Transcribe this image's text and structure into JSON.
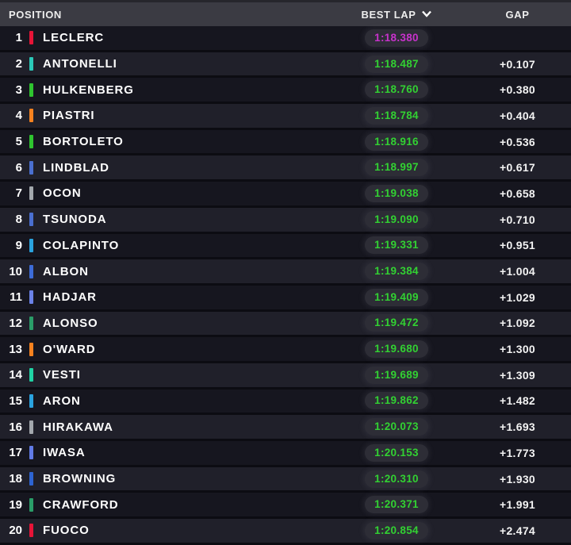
{
  "header": {
    "position_label": "POSITION",
    "best_lap_label": "BEST LAP",
    "gap_label": "GAP",
    "sort_icon": "chevron-down-icon"
  },
  "colors": {
    "header_bg": "#3b3b43",
    "row_odd_bg": "#16161f",
    "row_even_bg": "#20202a",
    "fastest_lap_text": "#c832cc",
    "personal_best_text": "#32d132",
    "gap_text": "#f3f3f3",
    "pill_bg": "#2d2d36"
  },
  "rows": [
    {
      "position": "1",
      "driver": "LECLERC",
      "team": "ferrari",
      "team_color": "#e61437",
      "best_lap": "1:18.380",
      "lap_state": "purple",
      "gap": ""
    },
    {
      "position": "2",
      "driver": "ANTONELLI",
      "team": "mercedes",
      "team_color": "#2bc9b9",
      "best_lap": "1:18.487",
      "lap_state": "green",
      "gap": "+0.107"
    },
    {
      "position": "3",
      "driver": "HULKENBERG",
      "team": "sauber",
      "team_color": "#2fc42f",
      "best_lap": "1:18.760",
      "lap_state": "green",
      "gap": "+0.380"
    },
    {
      "position": "4",
      "driver": "PIASTRI",
      "team": "mclaren",
      "team_color": "#f6821f",
      "best_lap": "1:18.784",
      "lap_state": "green",
      "gap": "+0.404"
    },
    {
      "position": "5",
      "driver": "BORTOLETO",
      "team": "sauber",
      "team_color": "#2fc42f",
      "best_lap": "1:18.916",
      "lap_state": "green",
      "gap": "+0.536"
    },
    {
      "position": "6",
      "driver": "LINDBLAD",
      "team": "red-bull",
      "team_color": "#4a6fd0",
      "best_lap": "1:18.997",
      "lap_state": "green",
      "gap": "+0.617"
    },
    {
      "position": "7",
      "driver": "OCON",
      "team": "haas",
      "team_color": "#a3a8ad",
      "best_lap": "1:19.038",
      "lap_state": "green",
      "gap": "+0.658"
    },
    {
      "position": "8",
      "driver": "TSUNODA",
      "team": "red-bull",
      "team_color": "#4a6fd0",
      "best_lap": "1:19.090",
      "lap_state": "green",
      "gap": "+0.710"
    },
    {
      "position": "9",
      "driver": "COLAPINTO",
      "team": "alpine",
      "team_color": "#2aa3df",
      "best_lap": "1:19.331",
      "lap_state": "green",
      "gap": "+0.951"
    },
    {
      "position": "10",
      "driver": "ALBON",
      "team": "williams",
      "team_color": "#3d6cd8",
      "best_lap": "1:19.384",
      "lap_state": "green",
      "gap": "+1.004"
    },
    {
      "position": "11",
      "driver": "HADJAR",
      "team": "racing-bulls",
      "team_color": "#6b82e8",
      "best_lap": "1:19.409",
      "lap_state": "green",
      "gap": "+1.029"
    },
    {
      "position": "12",
      "driver": "ALONSO",
      "team": "aston-martin",
      "team_color": "#2a9d68",
      "best_lap": "1:19.472",
      "lap_state": "green",
      "gap": "+1.092"
    },
    {
      "position": "13",
      "driver": "O'WARD",
      "team": "mclaren",
      "team_color": "#f6821f",
      "best_lap": "1:19.680",
      "lap_state": "green",
      "gap": "+1.300"
    },
    {
      "position": "14",
      "driver": "VESTI",
      "team": "mercedes",
      "team_color": "#20d3a4",
      "best_lap": "1:19.689",
      "lap_state": "green",
      "gap": "+1.309"
    },
    {
      "position": "15",
      "driver": "ARON",
      "team": "alpine",
      "team_color": "#2aa3df",
      "best_lap": "1:19.862",
      "lap_state": "green",
      "gap": "+1.482"
    },
    {
      "position": "16",
      "driver": "HIRAKAWA",
      "team": "haas",
      "team_color": "#a3a8ad",
      "best_lap": "1:20.073",
      "lap_state": "green",
      "gap": "+1.693"
    },
    {
      "position": "17",
      "driver": "IWASA",
      "team": "racing-bulls",
      "team_color": "#617be6",
      "best_lap": "1:20.153",
      "lap_state": "green",
      "gap": "+1.773"
    },
    {
      "position": "18",
      "driver": "BROWNING",
      "team": "williams",
      "team_color": "#2d64d2",
      "best_lap": "1:20.310",
      "lap_state": "green",
      "gap": "+1.930"
    },
    {
      "position": "19",
      "driver": "CRAWFORD",
      "team": "aston-martin",
      "team_color": "#2a9d68",
      "best_lap": "1:20.371",
      "lap_state": "green",
      "gap": "+1.991"
    },
    {
      "position": "20",
      "driver": "FUOCO",
      "team": "ferrari",
      "team_color": "#e61437",
      "best_lap": "1:20.854",
      "lap_state": "green",
      "gap": "+2.474"
    }
  ]
}
